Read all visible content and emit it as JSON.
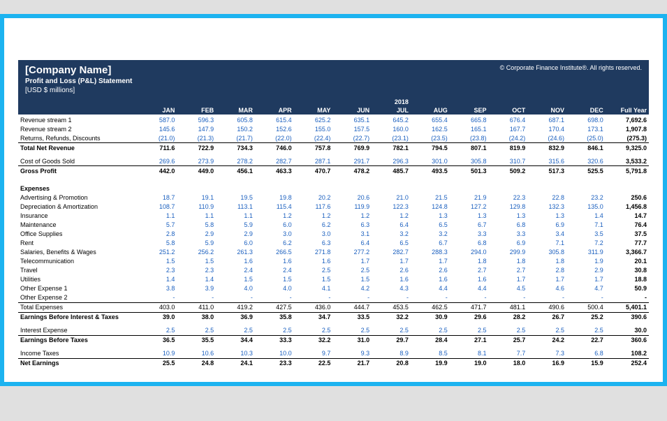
{
  "colors": {
    "frame_border": "#1cb3f0",
    "header_bg": "#1f3a5f",
    "link_color": "#1a5fbf",
    "text_color": "#000000",
    "page_bg": "#ffffff",
    "body_bg": "#e0e0e0"
  },
  "header": {
    "company": "[Company Name]",
    "subtitle": "Profit and Loss (P&L) Statement",
    "unit": "[USD $ millions]",
    "copyright": "© Corporate Finance Institute®. All rights reserved.",
    "year": "2018",
    "months": [
      "JAN",
      "FEB",
      "MAR",
      "APR",
      "MAY",
      "JUN",
      "JUL",
      "AUG",
      "SEP",
      "OCT",
      "NOV",
      "DEC"
    ],
    "full_year_label": "Full Year"
  },
  "rows": [
    {
      "label": "Revenue stream 1",
      "values": [
        "587.0",
        "596.3",
        "605.8",
        "615.4",
        "625.2",
        "635.1",
        "645.2",
        "655.4",
        "665.8",
        "676.4",
        "687.1",
        "698.0"
      ],
      "fy": "7,692.6",
      "style": "link",
      "cls": ""
    },
    {
      "label": "Revenue stream 2",
      "values": [
        "145.6",
        "147.9",
        "150.2",
        "152.6",
        "155.0",
        "157.5",
        "160.0",
        "162.5",
        "165.1",
        "167.7",
        "170.4",
        "173.1"
      ],
      "fy": "1,907.8",
      "style": "link",
      "cls": ""
    },
    {
      "label": "Returns, Refunds, Discounts",
      "values": [
        "(21.0)",
        "(21.3)",
        "(21.7)",
        "(22.0)",
        "(22.4)",
        "(22.7)",
        "(23.1)",
        "(23.5)",
        "(23.8)",
        "(24.2)",
        "(24.6)",
        "(25.0)"
      ],
      "fy": "(275.3)",
      "style": "link",
      "cls": "underline"
    },
    {
      "label": "Total Net Revenue",
      "values": [
        "711.6",
        "722.9",
        "734.3",
        "746.0",
        "757.8",
        "769.9",
        "782.1",
        "794.5",
        "807.1",
        "819.9",
        "832.9",
        "846.1"
      ],
      "fy": "9,325.0",
      "style": "bold",
      "cls": "bold"
    },
    {
      "label": "",
      "values": [
        "",
        "",
        "",
        "",
        "",
        "",
        "",
        "",
        "",
        "",
        "",
        ""
      ],
      "fy": "",
      "style": "gap",
      "cls": "gap"
    },
    {
      "label": "Cost of Goods Sold",
      "values": [
        "269.6",
        "273.9",
        "278.2",
        "282.7",
        "287.1",
        "291.7",
        "296.3",
        "301.0",
        "305.8",
        "310.7",
        "315.6",
        "320.6"
      ],
      "fy": "3,533.2",
      "style": "link",
      "cls": "underline"
    },
    {
      "label": "Gross Profit",
      "values": [
        "442.0",
        "449.0",
        "456.1",
        "463.3",
        "470.7",
        "478.2",
        "485.7",
        "493.5",
        "501.3",
        "509.2",
        "517.3",
        "525.5"
      ],
      "fy": "5,791.8",
      "style": "bold",
      "cls": "bold"
    },
    {
      "label": "",
      "values": [
        "",
        "",
        "",
        "",
        "",
        "",
        "",
        "",
        "",
        "",
        "",
        ""
      ],
      "fy": "",
      "style": "gap",
      "cls": "gap"
    },
    {
      "label": "Expenses",
      "values": [
        "",
        "",
        "",
        "",
        "",
        "",
        "",
        "",
        "",
        "",
        "",
        ""
      ],
      "fy": "",
      "style": "section",
      "cls": "section"
    },
    {
      "label": "Advertising & Promotion",
      "values": [
        "18.7",
        "19.1",
        "19.5",
        "19.8",
        "20.2",
        "20.6",
        "21.0",
        "21.5",
        "21.9",
        "22.3",
        "22.8",
        "23.2"
      ],
      "fy": "250.6",
      "style": "link",
      "cls": ""
    },
    {
      "label": "Depreciation & Amortization",
      "values": [
        "108.7",
        "110.9",
        "113.1",
        "115.4",
        "117.6",
        "119.9",
        "122.3",
        "124.8",
        "127.2",
        "129.8",
        "132.3",
        "135.0"
      ],
      "fy": "1,456.8",
      "style": "link",
      "cls": ""
    },
    {
      "label": "Insurance",
      "values": [
        "1.1",
        "1.1",
        "1.1",
        "1.2",
        "1.2",
        "1.2",
        "1.2",
        "1.3",
        "1.3",
        "1.3",
        "1.3",
        "1.4"
      ],
      "fy": "14.7",
      "style": "link",
      "cls": ""
    },
    {
      "label": "Maintenance",
      "values": [
        "5.7",
        "5.8",
        "5.9",
        "6.0",
        "6.2",
        "6.3",
        "6.4",
        "6.5",
        "6.7",
        "6.8",
        "6.9",
        "7.1"
      ],
      "fy": "76.4",
      "style": "link",
      "cls": ""
    },
    {
      "label": "Office Supplies",
      "values": [
        "2.8",
        "2.9",
        "2.9",
        "3.0",
        "3.0",
        "3.1",
        "3.2",
        "3.2",
        "3.3",
        "3.3",
        "3.4",
        "3.5"
      ],
      "fy": "37.5",
      "style": "link",
      "cls": ""
    },
    {
      "label": "Rent",
      "values": [
        "5.8",
        "5.9",
        "6.0",
        "6.2",
        "6.3",
        "6.4",
        "6.5",
        "6.7",
        "6.8",
        "6.9",
        "7.1",
        "7.2"
      ],
      "fy": "77.7",
      "style": "link",
      "cls": ""
    },
    {
      "label": "Salaries, Benefits & Wages",
      "values": [
        "251.2",
        "256.2",
        "261.3",
        "266.5",
        "271.8",
        "277.2",
        "282.7",
        "288.3",
        "294.0",
        "299.9",
        "305.8",
        "311.9"
      ],
      "fy": "3,366.7",
      "style": "link",
      "cls": ""
    },
    {
      "label": "Telecommunication",
      "values": [
        "1.5",
        "1.5",
        "1.6",
        "1.6",
        "1.6",
        "1.7",
        "1.7",
        "1.7",
        "1.8",
        "1.8",
        "1.8",
        "1.9"
      ],
      "fy": "20.1",
      "style": "link",
      "cls": ""
    },
    {
      "label": "Travel",
      "values": [
        "2.3",
        "2.3",
        "2.4",
        "2.4",
        "2.5",
        "2.5",
        "2.6",
        "2.6",
        "2.7",
        "2.7",
        "2.8",
        "2.9"
      ],
      "fy": "30.8",
      "style": "link",
      "cls": ""
    },
    {
      "label": "Utilities",
      "values": [
        "1.4",
        "1.4",
        "1.5",
        "1.5",
        "1.5",
        "1.5",
        "1.6",
        "1.6",
        "1.6",
        "1.7",
        "1.7",
        "1.7"
      ],
      "fy": "18.8",
      "style": "link",
      "cls": ""
    },
    {
      "label": "Other Expense 1",
      "values": [
        "3.8",
        "3.9",
        "4.0",
        "4.0",
        "4.1",
        "4.2",
        "4.3",
        "4.4",
        "4.4",
        "4.5",
        "4.6",
        "4.7"
      ],
      "fy": "50.9",
      "style": "link",
      "cls": ""
    },
    {
      "label": "Other Expense 2",
      "values": [
        "-",
        "-",
        "-",
        "-",
        "-",
        "-",
        "-",
        "-",
        "-",
        "-",
        "-",
        "-"
      ],
      "fy": "-",
      "style": "link",
      "cls": "underline"
    },
    {
      "label": "Total Expenses",
      "values": [
        "403.0",
        "411.0",
        "419.2",
        "427.5",
        "436.0",
        "444.7",
        "453.5",
        "462.5",
        "471.7",
        "481.1",
        "490.6",
        "500.4"
      ],
      "fy": "5,401.1",
      "style": "plain",
      "cls": "underline"
    },
    {
      "label": "Earnings Before Interest & Taxes",
      "values": [
        "39.0",
        "38.0",
        "36.9",
        "35.8",
        "34.7",
        "33.5",
        "32.2",
        "30.9",
        "29.6",
        "28.2",
        "26.7",
        "25.2"
      ],
      "fy": "390.6",
      "style": "bold",
      "cls": "bold"
    },
    {
      "label": "",
      "values": [
        "",
        "",
        "",
        "",
        "",
        "",
        "",
        "",
        "",
        "",
        "",
        ""
      ],
      "fy": "",
      "style": "gap",
      "cls": "gap"
    },
    {
      "label": "Interest Expense",
      "values": [
        "2.5",
        "2.5",
        "2.5",
        "2.5",
        "2.5",
        "2.5",
        "2.5",
        "2.5",
        "2.5",
        "2.5",
        "2.5",
        "2.5"
      ],
      "fy": "30.0",
      "style": "link",
      "cls": "underline"
    },
    {
      "label": "Earnings Before Taxes",
      "values": [
        "36.5",
        "35.5",
        "34.4",
        "33.3",
        "32.2",
        "31.0",
        "29.7",
        "28.4",
        "27.1",
        "25.7",
        "24.2",
        "22.7"
      ],
      "fy": "360.6",
      "style": "bold",
      "cls": "bold"
    },
    {
      "label": "",
      "values": [
        "",
        "",
        "",
        "",
        "",
        "",
        "",
        "",
        "",
        "",
        "",
        ""
      ],
      "fy": "",
      "style": "gap",
      "cls": "gap"
    },
    {
      "label": "Income Taxes",
      "values": [
        "10.9",
        "10.6",
        "10.3",
        "10.0",
        "9.7",
        "9.3",
        "8.9",
        "8.5",
        "8.1",
        "7.7",
        "7.3",
        "6.8"
      ],
      "fy": "108.2",
      "style": "link",
      "cls": "underline"
    },
    {
      "label": "Net Earnings",
      "values": [
        "25.5",
        "24.8",
        "24.1",
        "23.3",
        "22.5",
        "21.7",
        "20.8",
        "19.9",
        "19.0",
        "18.0",
        "16.9",
        "15.9"
      ],
      "fy": "252.4",
      "style": "bold",
      "cls": "bold"
    }
  ]
}
